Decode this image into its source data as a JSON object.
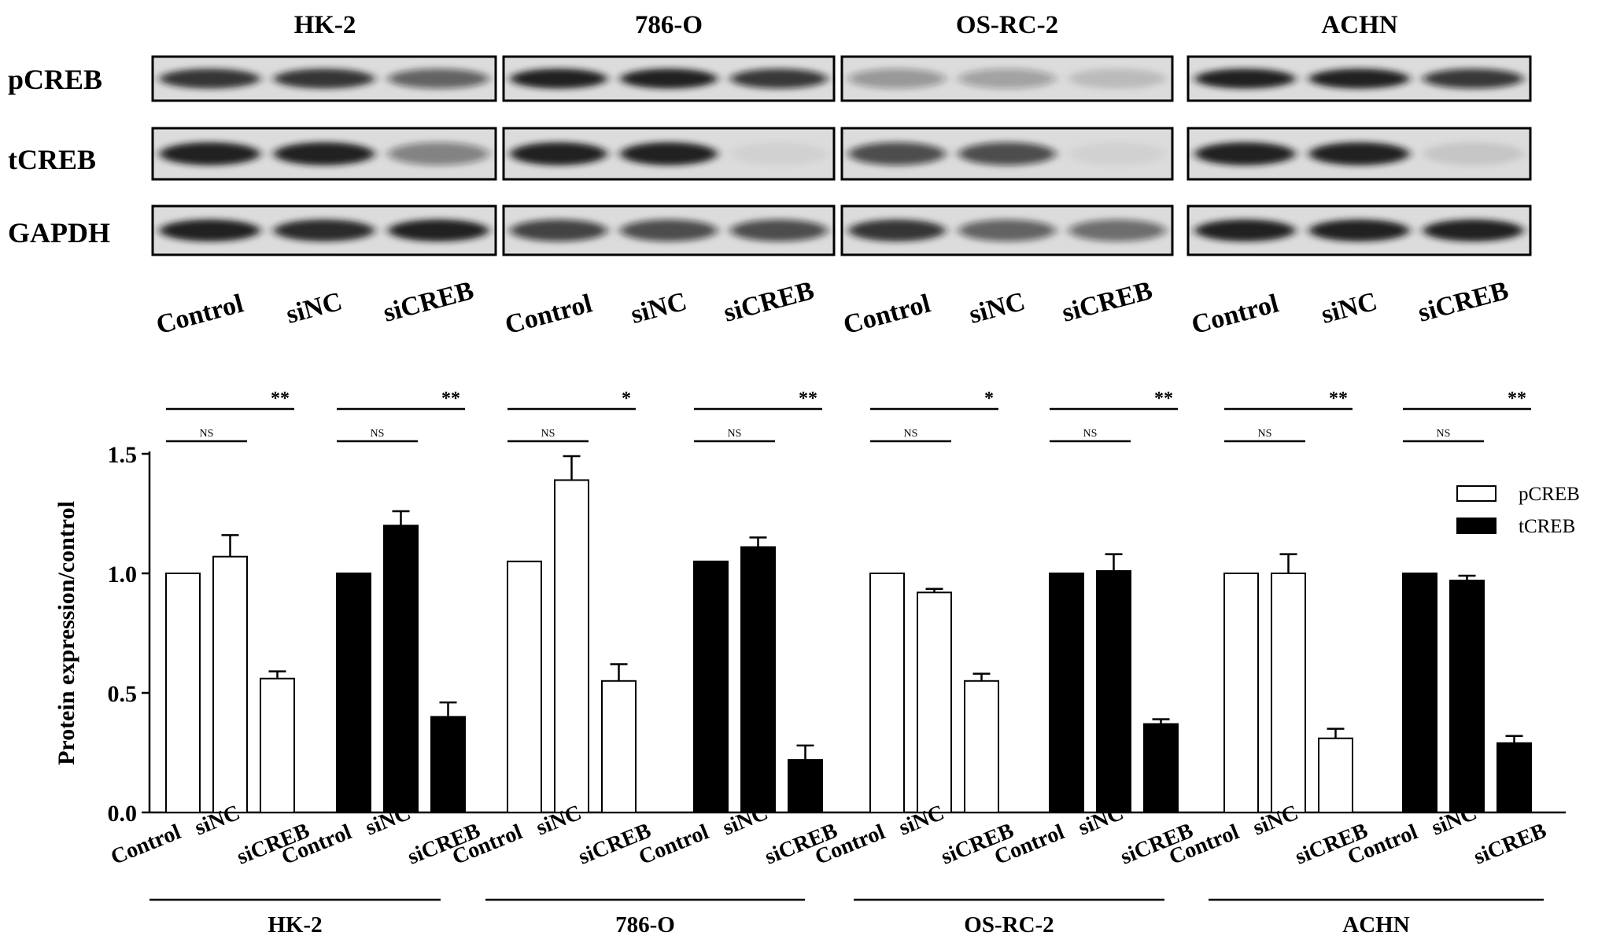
{
  "blot": {
    "cell_lines": [
      "HK-2",
      "786-O",
      "OS-RC-2",
      "ACHN"
    ],
    "proteins": [
      "pCREB",
      "tCREB",
      "GAPDH"
    ],
    "lanes": [
      "Control",
      "siNC",
      "siCREB"
    ],
    "band_intensity": {
      "pCREB": [
        [
          0.85,
          0.85,
          0.6
        ],
        [
          0.95,
          1.0,
          0.8
        ],
        [
          0.35,
          0.3,
          0.15
        ],
        [
          1.0,
          1.0,
          0.8
        ]
      ],
      "tCREB": [
        [
          0.95,
          0.95,
          0.45
        ],
        [
          1.0,
          1.0,
          0.05
        ],
        [
          0.7,
          0.7,
          0.05
        ],
        [
          1.0,
          0.95,
          0.1
        ]
      ],
      "GAPDH": [
        [
          0.95,
          0.9,
          1.0
        ],
        [
          0.75,
          0.7,
          0.7
        ],
        [
          0.85,
          0.6,
          0.55
        ],
        [
          1.0,
          1.0,
          1.0
        ]
      ]
    }
  },
  "chart_data": {
    "type": "bar",
    "ylabel": "Protein expression/control",
    "ylim": [
      0,
      1.5
    ],
    "yticks": [
      "0.0",
      "0.5",
      "1.0",
      "1.5"
    ],
    "categories": [
      "Control",
      "siNC",
      "siCREB"
    ],
    "legend": {
      "placement": "top-right",
      "entries": [
        {
          "name": "pCREB",
          "fill": "#ffffff"
        },
        {
          "name": "tCREB",
          "fill": "#000000"
        }
      ]
    },
    "groups": [
      {
        "cell_line": "HK-2",
        "series": "pCREB",
        "values": [
          1.0,
          1.07,
          0.56
        ],
        "errors": [
          0,
          0.09,
          0.03
        ],
        "sig_top": "**",
        "sig_bottom": "NS"
      },
      {
        "cell_line": "HK-2",
        "series": "tCREB",
        "values": [
          1.0,
          1.2,
          0.4
        ],
        "errors": [
          0,
          0.06,
          0.06
        ],
        "sig_top": "**",
        "sig_bottom": "NS"
      },
      {
        "cell_line": "786-O",
        "series": "pCREB",
        "values": [
          1.05,
          1.39,
          0.55
        ],
        "errors": [
          0,
          0.1,
          0.07
        ],
        "sig_top": "*",
        "sig_bottom": "NS"
      },
      {
        "cell_line": "786-O",
        "series": "tCREB",
        "values": [
          1.05,
          1.11,
          0.22
        ],
        "errors": [
          0,
          0.04,
          0.06
        ],
        "sig_top": "**",
        "sig_bottom": "NS"
      },
      {
        "cell_line": "OS-RC-2",
        "series": "pCREB",
        "values": [
          1.0,
          0.92,
          0.55
        ],
        "errors": [
          0,
          0.015,
          0.03
        ],
        "sig_top": "*",
        "sig_bottom": "NS"
      },
      {
        "cell_line": "OS-RC-2",
        "series": "tCREB",
        "values": [
          1.0,
          1.01,
          0.37
        ],
        "errors": [
          0,
          0.07,
          0.02
        ],
        "sig_top": "**",
        "sig_bottom": "NS"
      },
      {
        "cell_line": "ACHN",
        "series": "pCREB",
        "values": [
          1.0,
          1.0,
          0.31
        ],
        "errors": [
          0,
          0.08,
          0.04
        ],
        "sig_top": "**",
        "sig_bottom": "NS"
      },
      {
        "cell_line": "ACHN",
        "series": "tCREB",
        "values": [
          1.0,
          0.97,
          0.29
        ],
        "errors": [
          0,
          0.02,
          0.03
        ],
        "sig_top": "**",
        "sig_bottom": "NS"
      }
    ],
    "cell_line_labels": [
      "HK-2",
      "786-O",
      "OS-RC-2",
      "ACHN"
    ]
  }
}
